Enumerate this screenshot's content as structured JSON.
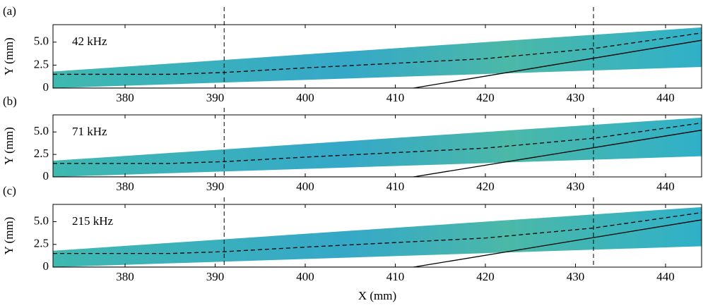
{
  "chart_data": [
    {
      "type": "line",
      "panel_label": "(a)",
      "annotation": "42 kHz",
      "ylabel": "Y (mm)",
      "xlim": [
        372,
        444
      ],
      "ylim": [
        0,
        6.9
      ],
      "xticks": [
        380,
        390,
        400,
        410,
        420,
        430,
        440
      ],
      "yticks": [
        0,
        2.5,
        {
          "value": 5,
          "label": "5.0"
        }
      ],
      "region": {
        "x": [
          372,
          444
        ],
        "lower": [
          0,
          2.3
        ],
        "upper": [
          1.8,
          6.6
        ],
        "color": "#2fb0c0"
      },
      "vlines": [
        391,
        432
      ],
      "series": [
        {
          "color": "#000000",
          "dash": true,
          "x": [
            372,
            385,
            391,
            400,
            410,
            420,
            432,
            444
          ],
          "values": [
            1.5,
            1.5,
            1.7,
            2.2,
            2.7,
            3.2,
            4.3,
            6.0
          ]
        },
        {
          "color": "#000000",
          "dash": false,
          "x": [
            372,
            412,
            444
          ],
          "values": [
            0,
            0,
            5.2
          ]
        }
      ]
    },
    {
      "type": "line",
      "panel_label": "(b)",
      "annotation": "71 kHz",
      "ylabel": "Y (mm)",
      "xlim": [
        372,
        444
      ],
      "ylim": [
        0,
        6.9
      ],
      "xticks": [
        380,
        390,
        400,
        410,
        420,
        430,
        440
      ],
      "yticks": [
        0,
        2.5,
        {
          "value": 5,
          "label": "5.0"
        }
      ],
      "region": {
        "x": [
          372,
          444
        ],
        "lower": [
          0,
          2.3
        ],
        "upper": [
          1.8,
          6.6
        ],
        "color": "#2fb0c0"
      },
      "vlines": [
        391,
        432
      ],
      "series": [
        {
          "color": "#000000",
          "dash": true,
          "x": [
            372,
            385,
            391,
            400,
            410,
            420,
            432,
            444
          ],
          "values": [
            1.5,
            1.5,
            1.7,
            2.2,
            2.7,
            3.2,
            4.3,
            6.0
          ]
        },
        {
          "color": "#000000",
          "dash": false,
          "x": [
            372,
            412,
            444
          ],
          "values": [
            0,
            0,
            5.2
          ]
        }
      ]
    },
    {
      "type": "line",
      "panel_label": "(c)",
      "annotation": "215 kHz",
      "ylabel": "Y (mm)",
      "xlabel": "X (mm)",
      "xlim": [
        372,
        444
      ],
      "ylim": [
        0,
        6.9
      ],
      "xticks": [
        380,
        390,
        400,
        410,
        420,
        430,
        440
      ],
      "yticks": [
        0,
        2.5,
        {
          "value": 5,
          "label": "5.0"
        }
      ],
      "region": {
        "x": [
          372,
          444
        ],
        "lower": [
          0,
          2.3
        ],
        "upper": [
          1.8,
          6.6
        ],
        "color": "#2fb0c0"
      },
      "vlines": [
        391,
        432
      ],
      "series": [
        {
          "color": "#000000",
          "dash": true,
          "x": [
            372,
            385,
            391,
            400,
            410,
            420,
            432,
            444
          ],
          "values": [
            1.5,
            1.5,
            1.7,
            2.2,
            2.7,
            3.2,
            4.3,
            6.0
          ]
        },
        {
          "color": "#000000",
          "dash": false,
          "x": [
            372,
            412,
            444
          ],
          "values": [
            0,
            0,
            5.2
          ]
        }
      ]
    }
  ]
}
